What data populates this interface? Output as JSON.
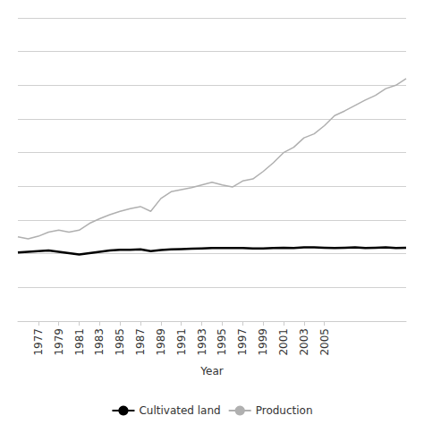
{
  "chart_data": {
    "type": "line",
    "xlabel": "Year",
    "x": [
      1975,
      1976,
      1977,
      1978,
      1979,
      1980,
      1981,
      1982,
      1983,
      1984,
      1985,
      1986,
      1987,
      1988,
      1989,
      1990,
      1991,
      1992,
      1993,
      1994,
      1995,
      1996,
      1997,
      1998,
      1999,
      2000,
      2001,
      2002,
      2003,
      2004,
      2005,
      2006,
      2007,
      2008,
      2009,
      2010,
      2011,
      2012,
      2013
    ],
    "series": [
      {
        "name": "Cultivated land",
        "color": "#000000",
        "values": [
          10.2,
          10.3,
          10.4,
          10.5,
          10.3,
          10.1,
          9.9,
          10.1,
          10.3,
          10.5,
          10.6,
          10.6,
          10.65,
          10.4,
          10.55,
          10.65,
          10.7,
          10.75,
          10.8,
          10.85,
          10.85,
          10.85,
          10.85,
          10.8,
          10.8,
          10.85,
          10.9,
          10.85,
          10.95,
          10.95,
          10.9,
          10.85,
          10.9,
          10.95,
          10.85,
          10.9,
          10.95,
          10.85,
          10.9
        ]
      },
      {
        "name": "Production",
        "color": "#b0b0b0",
        "values": [
          12.5,
          12.2,
          12.6,
          13.2,
          13.5,
          13.2,
          13.5,
          14.5,
          15.2,
          15.8,
          16.3,
          16.7,
          17.0,
          16.3,
          18.2,
          19.2,
          19.5,
          19.8,
          20.2,
          20.6,
          20.2,
          19.9,
          20.8,
          21.1,
          22.2,
          23.5,
          25.0,
          25.8,
          27.2,
          27.8,
          29.0,
          30.5,
          31.2,
          32.0,
          32.8,
          33.5,
          34.5,
          35.0,
          36.0
        ]
      }
    ],
    "xlim": [
      1975,
      2013
    ],
    "xticks": [
      1977,
      1979,
      1981,
      1983,
      1985,
      1987,
      1989,
      1991,
      1993,
      1995,
      1997,
      1999,
      2001,
      2003,
      2005
    ],
    "ylim": [
      0,
      45
    ],
    "yticks": [
      0,
      5,
      10,
      15,
      20,
      25,
      30,
      35,
      40,
      45
    ],
    "tick_labels": "x",
    "grid": true,
    "legend": "bottom"
  }
}
